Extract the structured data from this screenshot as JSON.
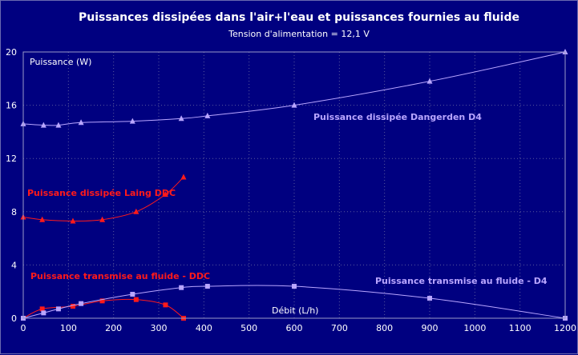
{
  "chart_data": {
    "type": "line",
    "title": "Puissances dissipées dans l'air+l'eau et puissances fournies au fluide",
    "subtitle": "Tension d'alimentation = 12,1 V",
    "ylabel": "Puissance (W)",
    "xlabel": "Débit (L/h)",
    "xlim": [
      0,
      1200
    ],
    "ylim": [
      0,
      20
    ],
    "xticks": [
      0,
      100,
      200,
      300,
      400,
      500,
      600,
      700,
      800,
      900,
      1000,
      1100,
      1200
    ],
    "yticks": [
      0,
      4,
      8,
      12,
      16,
      20
    ],
    "grid": true,
    "colors": {
      "background": "#000080",
      "grid": "#5a5a9c",
      "text": "#ffffff",
      "d4": "#b9a6ff",
      "ddc": "#ff1a1a"
    },
    "series": [
      {
        "name": "Puissance dissipée Dangerden D4",
        "color": "#b9a6ff",
        "marker": "triangle",
        "x": [
          0,
          45,
          78,
          128,
          242,
          350,
          408,
          600,
          900,
          1200
        ],
        "y": [
          14.6,
          14.5,
          14.5,
          14.7,
          14.8,
          15.0,
          15.2,
          16.0,
          17.8,
          20.0
        ]
      },
      {
        "name": "Puissance dissipée Laing DDC",
        "color": "#ff1a1a",
        "marker": "triangle",
        "x": [
          0,
          42,
          110,
          175,
          250,
          315,
          355
        ],
        "y": [
          7.6,
          7.4,
          7.3,
          7.4,
          8.0,
          9.3,
          10.6
        ]
      },
      {
        "name": "Puissance transmise au fluide - DDC",
        "color": "#ff1a1a",
        "marker": "square",
        "x": [
          0,
          42,
          110,
          175,
          250,
          315,
          355
        ],
        "y": [
          0,
          0.7,
          0.9,
          1.3,
          1.4,
          1.0,
          0
        ]
      },
      {
        "name": "Puissance transmise au fluide - D4",
        "color": "#b9a6ff",
        "marker": "square",
        "x": [
          0,
          45,
          78,
          128,
          242,
          350,
          408,
          600,
          900,
          1200
        ],
        "y": [
          0,
          0.4,
          0.7,
          1.1,
          1.8,
          2.3,
          2.4,
          2.4,
          1.5,
          0
        ]
      }
    ]
  }
}
